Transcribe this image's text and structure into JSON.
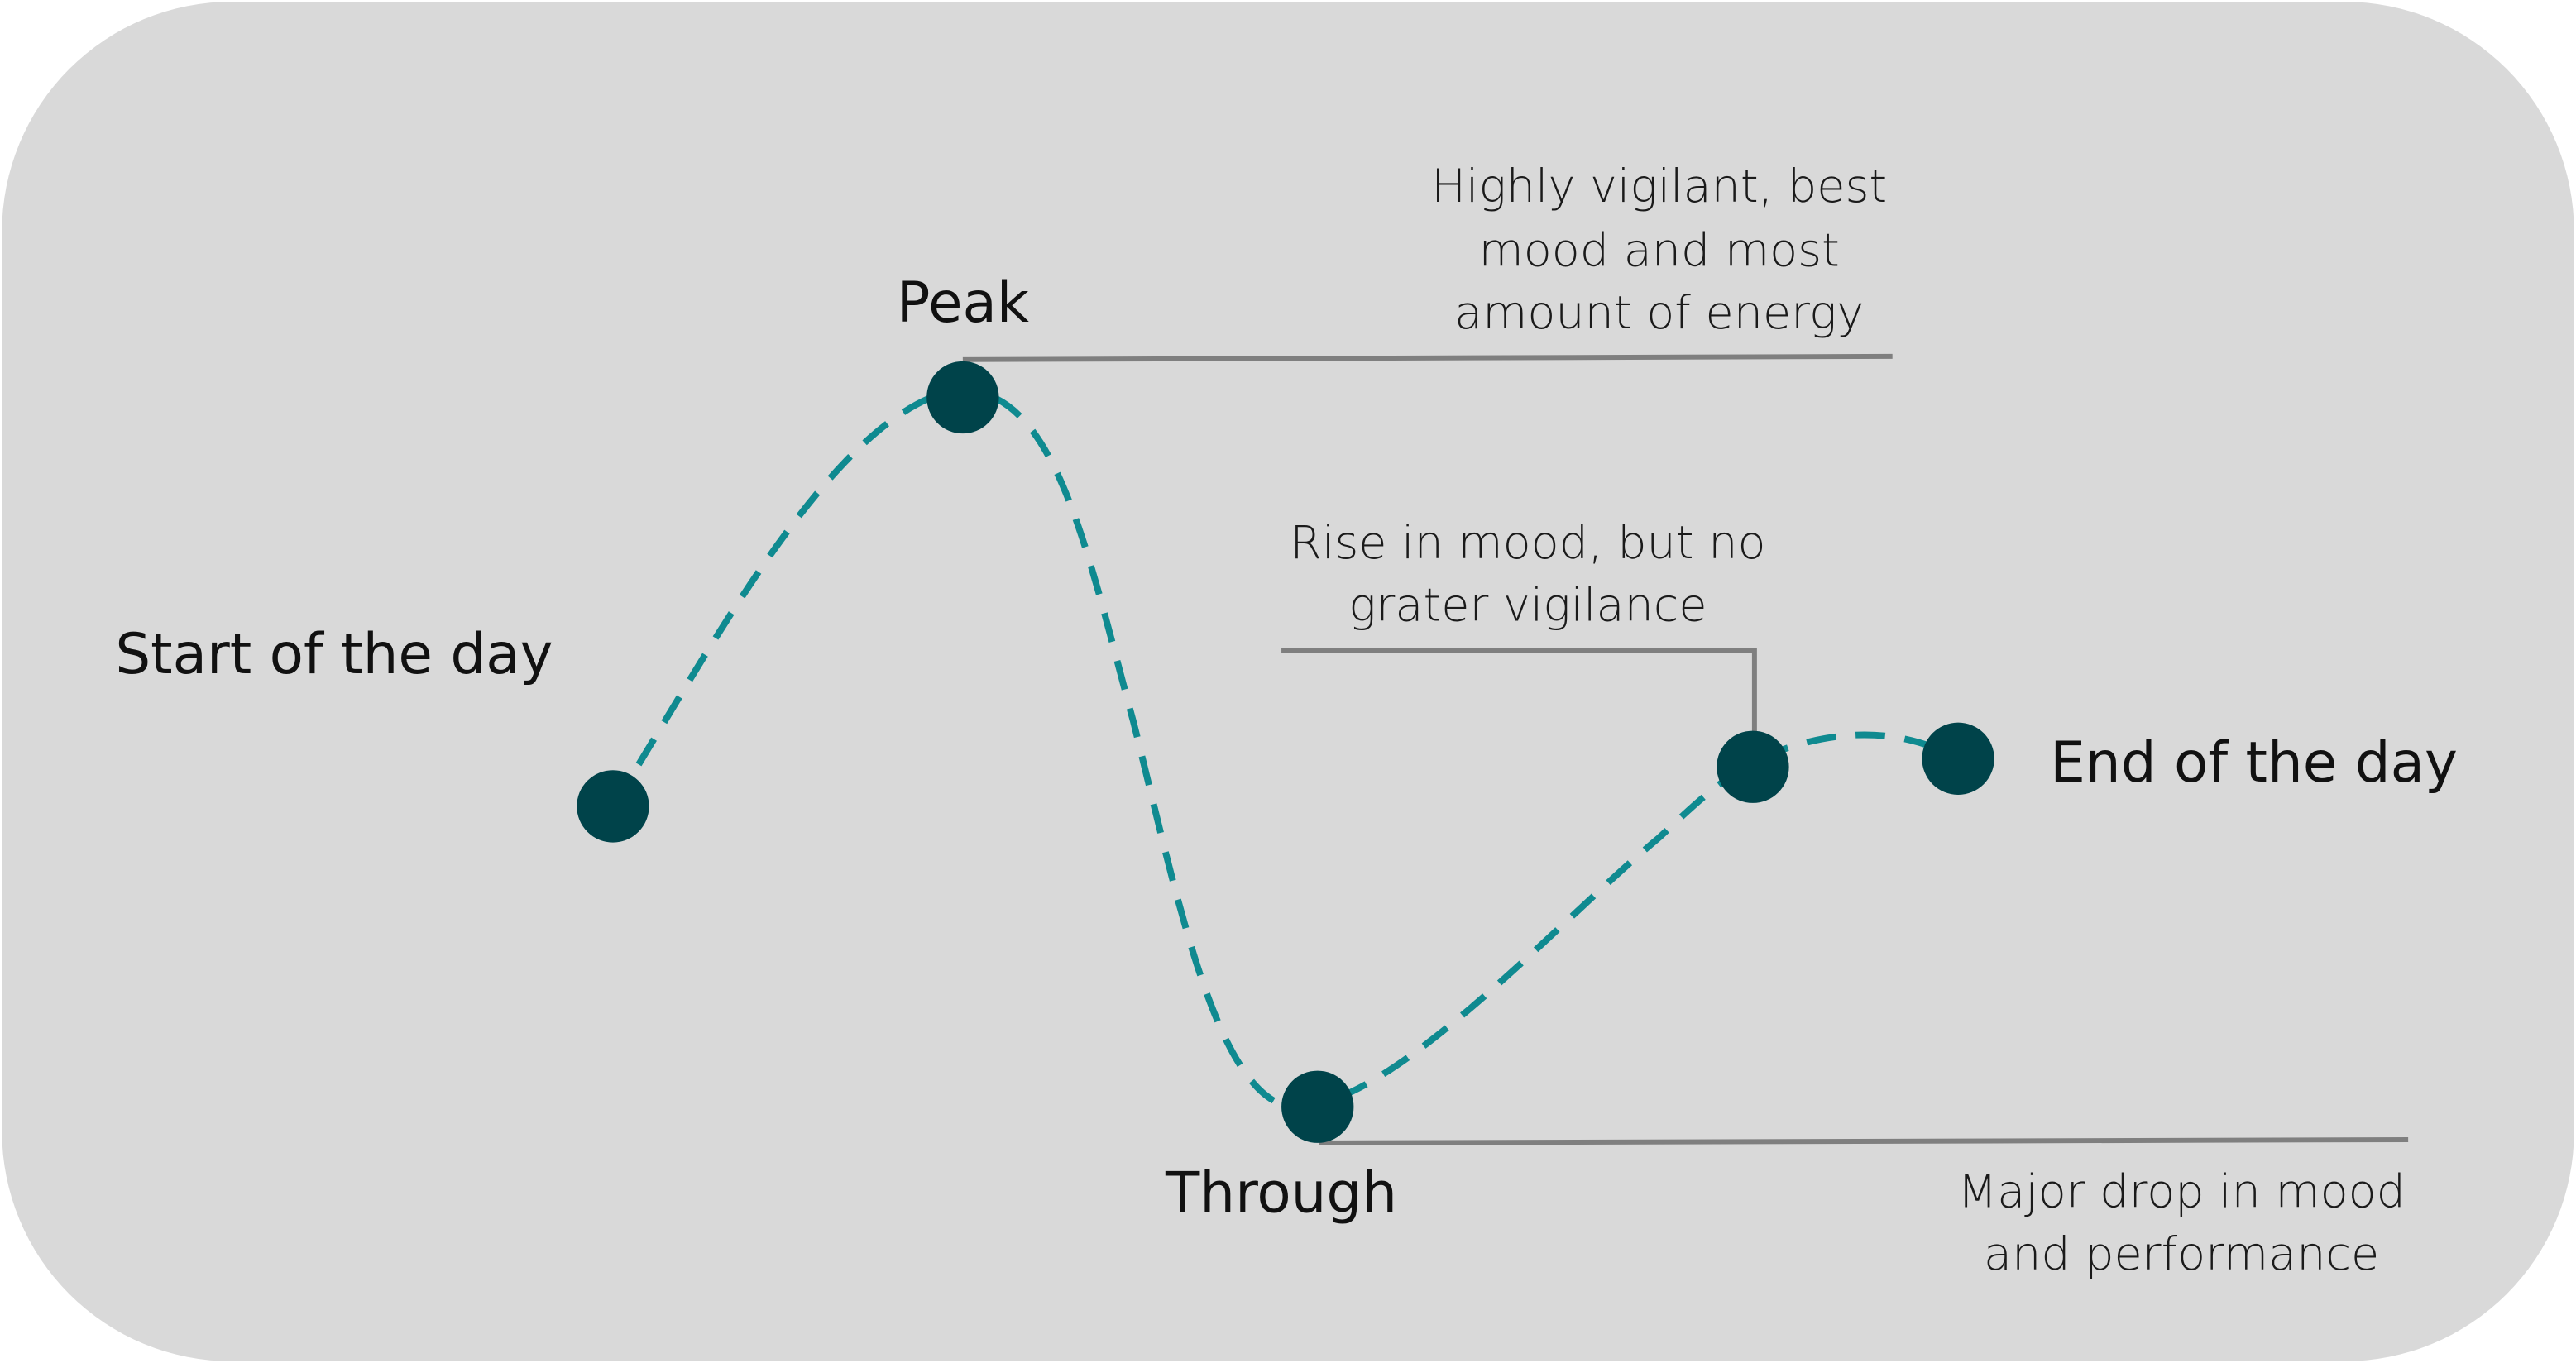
{
  "colors": {
    "background": "#d9d9d9",
    "curve": "#0f8a90",
    "points": "#00434a",
    "leader_lines": "#7f7f7f"
  },
  "labels": {
    "start": "Start of the day",
    "peak": "Peak",
    "through": "Through",
    "end": "End of the day"
  },
  "annotations": {
    "peak": [
      "Highly vigilant, best",
      "mood and most",
      "amount of energy"
    ],
    "rise": [
      "Rise in mood, but no",
      "grater vigilance"
    ],
    "through": [
      "Major drop in mood",
      "and performance"
    ]
  }
}
